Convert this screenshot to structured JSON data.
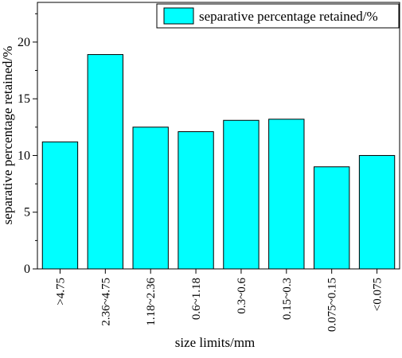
{
  "chart_data": {
    "type": "bar",
    "categories": [
      ">4.75",
      "2.36~4.75",
      "1.18~2.36",
      "0.6~1.18",
      "0.3~0.6",
      "0.15~0.3",
      "0.075~0.15",
      "<0.075"
    ],
    "series": [
      {
        "name": "separative percentage retained/%",
        "values": [
          11.2,
          18.9,
          12.5,
          12.1,
          13.1,
          13.2,
          9.0,
          10.0
        ],
        "color": "#00FFFF"
      }
    ],
    "xlabel": "size limits/mm",
    "ylabel": "separative percentage retained/%",
    "ylim": [
      0,
      23.5
    ],
    "yticks": [
      0,
      5,
      10,
      15,
      20
    ],
    "grid": false,
    "legend": "top-right"
  }
}
